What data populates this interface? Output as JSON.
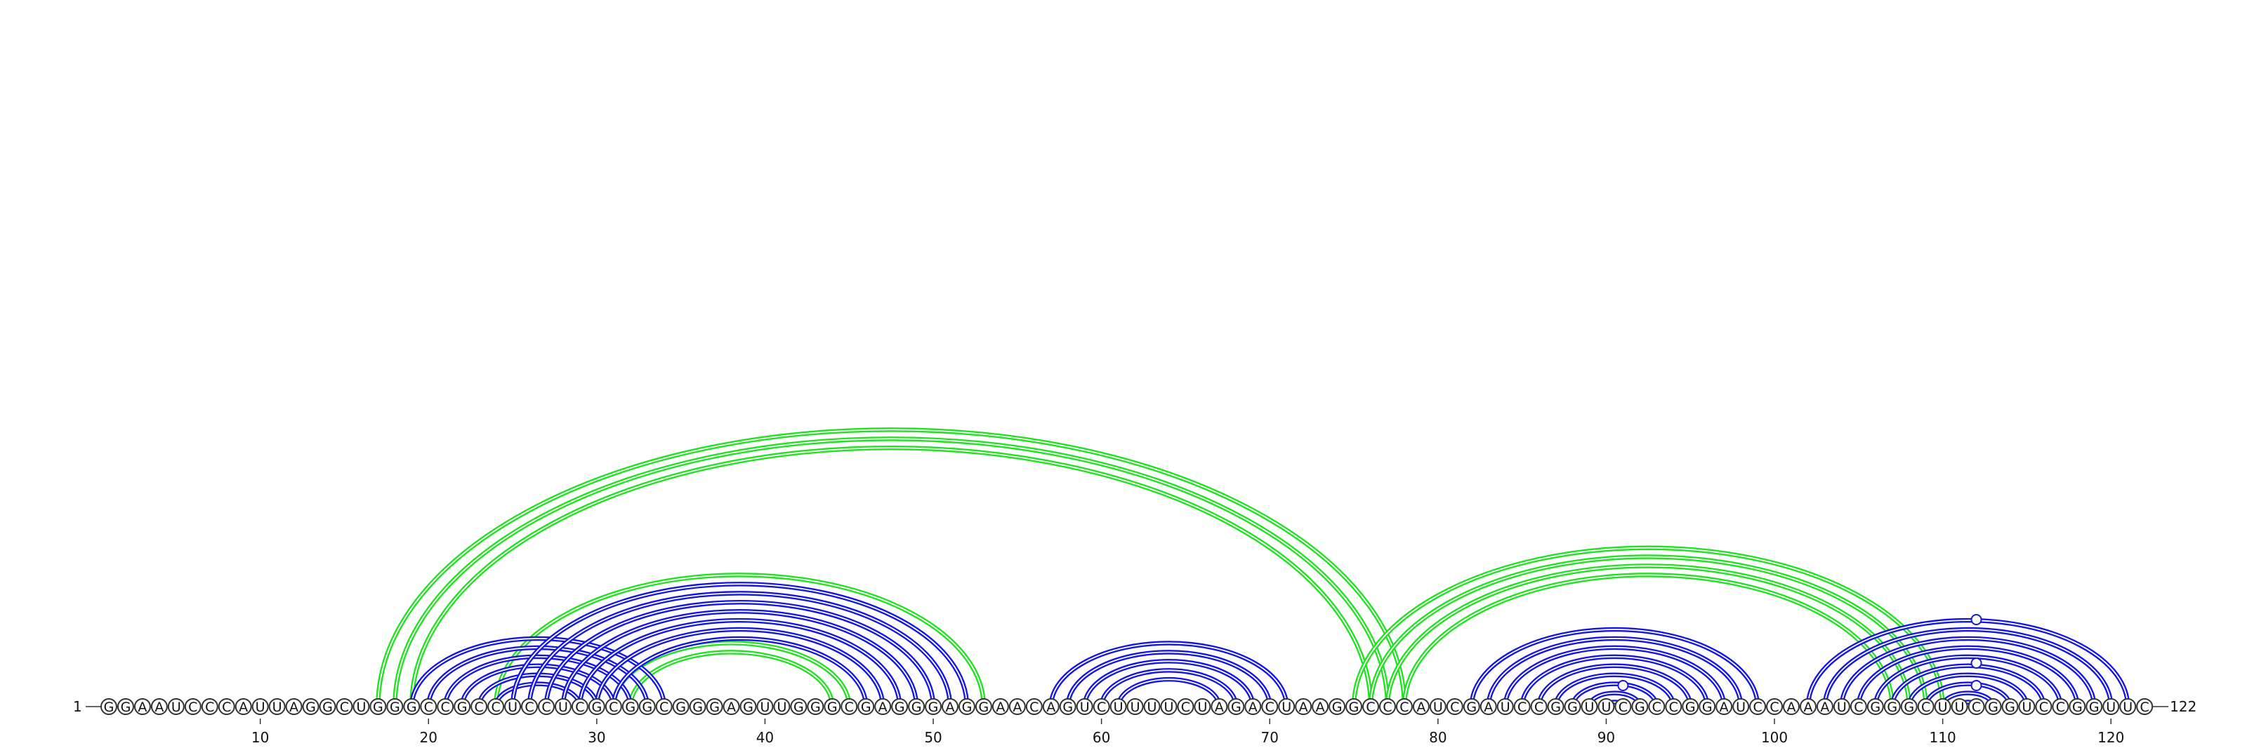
{
  "diagram": {
    "sequence": "GGAAUCCCAUUAGGCUGGGCCGCCUCCUCGCGGCGGGAGUUGGGCGAGGGAGGAACAGUCUUUUCUAGACUAAGGCCCAUCGAUCCGGUUCGCCGGAUCCAAAUCGGGCUUCGGUCCGGUUC",
    "start_label": "1",
    "end_label": "122",
    "tick_labels": [
      "10",
      "20",
      "30",
      "40",
      "50",
      "60",
      "70",
      "80",
      "90",
      "100",
      "110",
      "120"
    ],
    "colors": {
      "blue": "#1515e0",
      "green": "#22e022",
      "backbone": "#333333"
    },
    "blue_pairs": [
      [
        19,
        34
      ],
      [
        20,
        33
      ],
      [
        21,
        32
      ],
      [
        22,
        31
      ],
      [
        23,
        30
      ],
      [
        24,
        29
      ],
      [
        25,
        52
      ],
      [
        26,
        51
      ],
      [
        27,
        50
      ],
      [
        28,
        49
      ],
      [
        29,
        48
      ],
      [
        30,
        47
      ],
      [
        31,
        46
      ],
      [
        57,
        71
      ],
      [
        58,
        70
      ],
      [
        59,
        69
      ],
      [
        60,
        68
      ],
      [
        61,
        67
      ],
      [
        82,
        99
      ],
      [
        83,
        98
      ],
      [
        84,
        97
      ],
      [
        85,
        96
      ],
      [
        86,
        95
      ],
      [
        87,
        94
      ],
      [
        88,
        93
      ],
      [
        89,
        92
      ],
      [
        90,
        91
      ],
      [
        102,
        121
      ],
      [
        103,
        120
      ],
      [
        104,
        119
      ],
      [
        105,
        118
      ],
      [
        106,
        117
      ],
      [
        107,
        116
      ],
      [
        108,
        115
      ],
      [
        109,
        114
      ],
      [
        110,
        113
      ],
      [
        111,
        112
      ]
    ],
    "green_pairs": [
      [
        17,
        78
      ],
      [
        18,
        77
      ],
      [
        19,
        76
      ],
      [
        24,
        53
      ],
      [
        31,
        45
      ],
      [
        32,
        44
      ],
      [
        75,
        110
      ],
      [
        76,
        109
      ],
      [
        77,
        108
      ],
      [
        78,
        107
      ]
    ],
    "loop_markers": [
      {
        "position": 91,
        "color": "blue"
      },
      {
        "position": 112,
        "color": "blue"
      },
      {
        "position": 112,
        "color": "blue"
      },
      {
        "position": 112,
        "color": "blue"
      }
    ]
  }
}
